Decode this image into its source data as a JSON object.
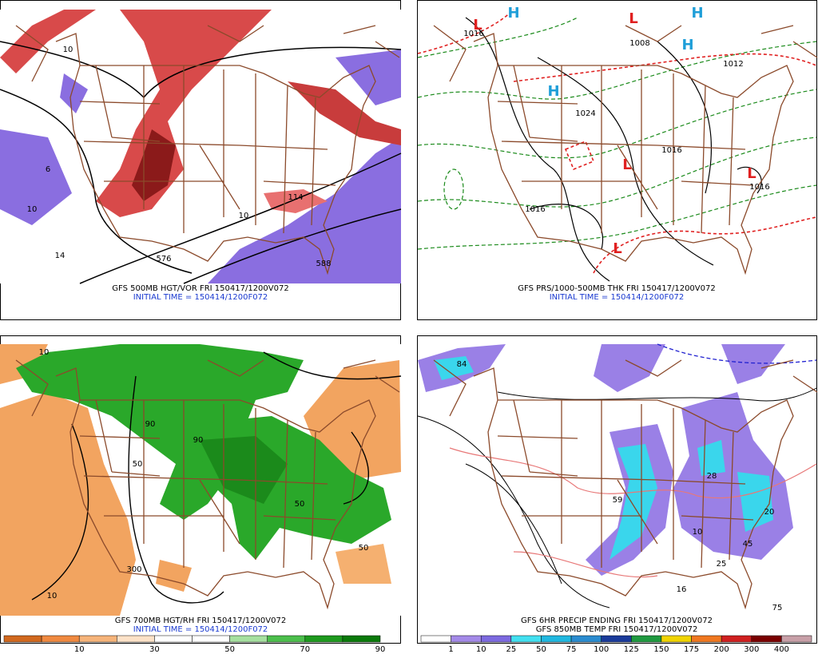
{
  "panels": [
    {
      "caption": [
        "GFS 500MB HGT/VOR FRI 150417/1200V072",
        "INITIAL TIME = 150414/1200F072"
      ],
      "labels": [
        "576",
        "588",
        "114",
        "10",
        "6",
        "14",
        "10",
        "10"
      ]
    },
    {
      "caption": [
        "GFS PRS/1000-500MB THK FRI 150417/1200V072",
        "INITIAL TIME = 150414/1200F072"
      ],
      "labels": [
        "L",
        "L",
        "L",
        "L",
        "L",
        "H",
        "H",
        "H",
        "H",
        "1016",
        "1008",
        "1024",
        "1016",
        "1016",
        "1016",
        "1012"
      ]
    },
    {
      "caption": [
        "GFS 700MB HGT/RH FRI 150417/1200V072",
        "INITIAL TIME = 150414/1200F072"
      ],
      "labels": [
        "10",
        "50",
        "90",
        "300",
        "50",
        "10",
        "50",
        "90"
      ],
      "colorbar": [
        10,
        30,
        50,
        70,
        90
      ]
    },
    {
      "caption": [
        "GFS 6HR PRECIP ENDING FRI 150417/1200V072",
        "GFS 850MB TEMP FRI 150417/1200V072"
      ],
      "labels": [
        "84",
        "59",
        "20",
        "28",
        "10",
        "45",
        "25",
        "16",
        "75"
      ],
      "colorbar": [
        1,
        10,
        25,
        50,
        75,
        100,
        125,
        150,
        175,
        200,
        300,
        400
      ]
    }
  ]
}
